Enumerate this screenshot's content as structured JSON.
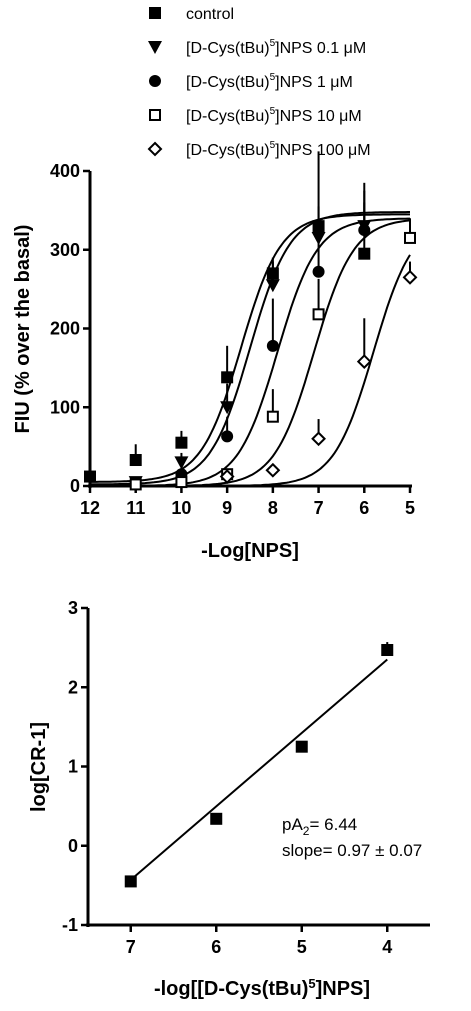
{
  "chart_data": [
    {
      "type": "scatter",
      "xlabel": "-Log[NPS]",
      "ylabel": "FIU (% over the basal)",
      "x_reversed": true,
      "xlim": [
        12,
        5
      ],
      "ylim": [
        0,
        400
      ],
      "xticks": [
        12,
        11,
        10,
        9,
        8,
        7,
        6,
        5
      ],
      "yticks": [
        0,
        100,
        200,
        300,
        400
      ],
      "grid": false,
      "legend_position": "top",
      "curve_fit": "sigmoidal dose-response",
      "series": [
        {
          "name": "control",
          "marker": "filled-square",
          "x": [
            12,
            11,
            10,
            9,
            8,
            7,
            6
          ],
          "y": [
            12,
            33,
            55,
            138,
            270,
            330,
            295
          ],
          "err": [
            8,
            20,
            15,
            40,
            20,
            95,
            65
          ],
          "fit": {
            "bottom": 5,
            "top": 345,
            "ec50_log": 8.7
          }
        },
        {
          "name": "[D-Cys(tBu)5]NPS 0.1 μM",
          "marker": "filled-triangle-down",
          "x": [
            11,
            10,
            9,
            8,
            7,
            6
          ],
          "y": [
            5,
            30,
            100,
            255,
            315,
            330
          ],
          "err": [
            5,
            12,
            30,
            30,
            40,
            55
          ],
          "fit": {
            "bottom": 2,
            "top": 348,
            "ec50_log": 8.5
          }
        },
        {
          "name": "[D-Cys(tBu)5]NPS 1 μM",
          "marker": "filled-circle",
          "x": [
            11,
            10,
            9,
            8,
            7,
            6
          ],
          "y": [
            3,
            15,
            63,
            178,
            272,
            325
          ],
          "err": [
            3,
            8,
            25,
            60,
            65,
            50
          ],
          "fit": {
            "bottom": 0,
            "top": 340,
            "ec50_log": 7.9
          }
        },
        {
          "name": "[D-Cys(tBu)5]NPS 10 μM",
          "marker": "open-square",
          "x": [
            11,
            10,
            9,
            8,
            7,
            5
          ],
          "y": [
            2,
            5,
            15,
            88,
            218,
            315
          ],
          "err": [
            2,
            4,
            6,
            35,
            45,
            25
          ],
          "fit": {
            "bottom": 0,
            "top": 340,
            "ec50_log": 7.1
          }
        },
        {
          "name": "[D-Cys(tBu)5]NPS 100 μM",
          "marker": "open-diamond",
          "x": [
            9,
            8,
            7,
            6,
            5
          ],
          "y": [
            12,
            20,
            60,
            158,
            265
          ],
          "err": [
            4,
            6,
            25,
            55,
            20
          ],
          "fit": {
            "bottom": 0,
            "top": 340,
            "ec50_log": 5.8
          }
        }
      ]
    },
    {
      "type": "scatter",
      "xlabel": "-log[[D-Cys(tBu)5]NPS]",
      "ylabel": "log[CR-1]",
      "x_reversed": true,
      "xlim": [
        7.5,
        3.5
      ],
      "ylim": [
        -1,
        3
      ],
      "xticks": [
        7,
        6,
        5,
        4
      ],
      "yticks": [
        -1,
        0,
        1,
        2,
        3
      ],
      "grid": false,
      "series": [
        {
          "name": "",
          "marker": "filled-square",
          "x": [
            7,
            6,
            5,
            4
          ],
          "y": [
            -0.45,
            0.34,
            1.25,
            2.47
          ],
          "err": [
            0.03,
            0.03,
            0.03,
            0.1
          ]
        }
      ],
      "regression": {
        "slope": 0.97,
        "x_range": [
          7,
          4
        ],
        "y_at_start": -0.43,
        "y_at_end": 2.35
      },
      "annotations": {
        "pa2_prefix": "pA",
        "pa2_sub": "2",
        "pa2_value": "= 6.44",
        "slope_text": "slope= 0.97 ± 0.07"
      }
    }
  ]
}
